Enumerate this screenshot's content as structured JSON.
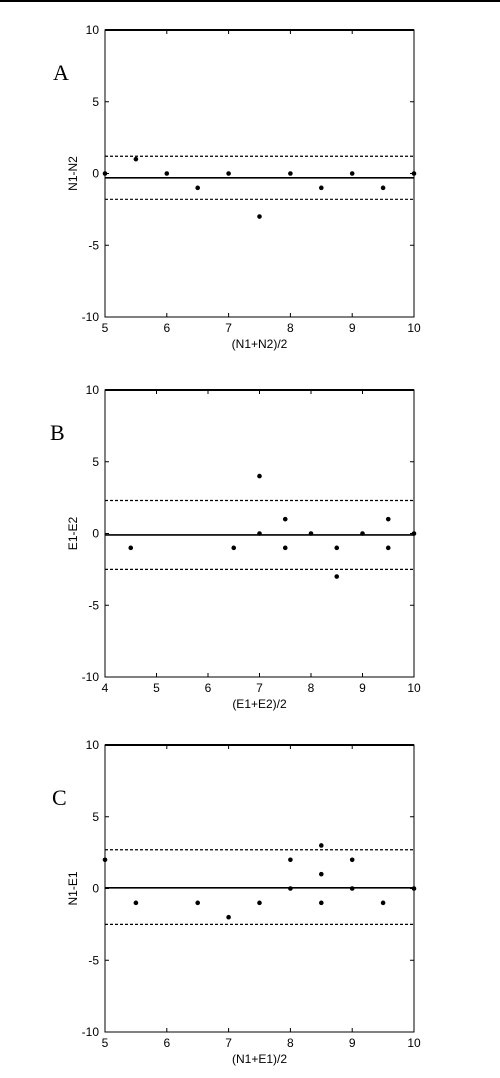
{
  "chart_data": [
    {
      "type": "scatter",
      "panel_letter": "A",
      "title": "",
      "xlabel": "(N1+N2)/2",
      "ylabel": "N1-N2",
      "xlim": [
        5,
        10
      ],
      "ylim": [
        -10,
        10
      ],
      "xticks": [
        5,
        6,
        7,
        8,
        9,
        10
      ],
      "yticks": [
        -10,
        -5,
        0,
        5,
        10
      ],
      "xtick_labels": [
        "5",
        "6",
        "7",
        "8",
        "9",
        "10"
      ],
      "ytick_labels": [
        "-10",
        "-5",
        "0",
        "5",
        "10"
      ],
      "grid": false,
      "points": [
        {
          "x": 5,
          "y": 0
        },
        {
          "x": 5.5,
          "y": 1
        },
        {
          "x": 6,
          "y": 0
        },
        {
          "x": 6.5,
          "y": -1
        },
        {
          "x": 7,
          "y": 0
        },
        {
          "x": 7.5,
          "y": -3
        },
        {
          "x": 8,
          "y": 0
        },
        {
          "x": 8.5,
          "y": -1
        },
        {
          "x": 9,
          "y": 0
        },
        {
          "x": 9.5,
          "y": -1
        },
        {
          "x": 10,
          "y": 0
        }
      ],
      "mean_line": -0.3,
      "limit_lines": [
        1.2,
        -1.8
      ]
    },
    {
      "type": "scatter",
      "panel_letter": "B",
      "title": "",
      "xlabel": "(E1+E2)/2",
      "ylabel": "E1-E2",
      "xlim": [
        4,
        10
      ],
      "ylim": [
        -10,
        10
      ],
      "xticks": [
        4,
        5,
        6,
        7,
        8,
        9,
        10
      ],
      "yticks": [
        -10,
        -5,
        0,
        5,
        10
      ],
      "xtick_labels": [
        "4",
        "5",
        "6",
        "7",
        "8",
        "9",
        "10"
      ],
      "ytick_labels": [
        "-10",
        "-5",
        "0",
        "5",
        "10"
      ],
      "grid": false,
      "points": [
        {
          "x": 4.5,
          "y": -1
        },
        {
          "x": 6.5,
          "y": -1
        },
        {
          "x": 7,
          "y": 4
        },
        {
          "x": 7,
          "y": 0
        },
        {
          "x": 7.5,
          "y": 1
        },
        {
          "x": 7.5,
          "y": -1
        },
        {
          "x": 8,
          "y": 0
        },
        {
          "x": 8.5,
          "y": -1
        },
        {
          "x": 8.5,
          "y": -3
        },
        {
          "x": 9,
          "y": 0
        },
        {
          "x": 9.5,
          "y": 1
        },
        {
          "x": 9.5,
          "y": -1
        },
        {
          "x": 10,
          "y": 0
        }
      ],
      "mean_line": -0.1,
      "limit_lines": [
        2.3,
        -2.5
      ]
    },
    {
      "type": "scatter",
      "panel_letter": "C",
      "title": "",
      "xlabel": "(N1+E1)/2",
      "ylabel": "N1-E1",
      "xlim": [
        5,
        10
      ],
      "ylim": [
        -10,
        10
      ],
      "xticks": [
        5,
        6,
        7,
        8,
        9,
        10
      ],
      "yticks": [
        -10,
        -5,
        0,
        5,
        10
      ],
      "xtick_labels": [
        "5",
        "6",
        "7",
        "8",
        "9",
        "10"
      ],
      "ytick_labels": [
        "-10",
        "-5",
        "0",
        "5",
        "10"
      ],
      "grid": false,
      "points": [
        {
          "x": 5,
          "y": 2
        },
        {
          "x": 5.5,
          "y": -1
        },
        {
          "x": 6.5,
          "y": -1
        },
        {
          "x": 7,
          "y": -2
        },
        {
          "x": 7.5,
          "y": -1
        },
        {
          "x": 8,
          "y": 2
        },
        {
          "x": 8,
          "y": 0
        },
        {
          "x": 8.5,
          "y": 3
        },
        {
          "x": 8.5,
          "y": 1
        },
        {
          "x": 8.5,
          "y": -1
        },
        {
          "x": 9,
          "y": 2
        },
        {
          "x": 9,
          "y": 0
        },
        {
          "x": 9.5,
          "y": -1
        },
        {
          "x": 10,
          "y": 0
        }
      ],
      "mean_line": 0.05,
      "limit_lines": [
        2.7,
        -2.5
      ]
    }
  ]
}
